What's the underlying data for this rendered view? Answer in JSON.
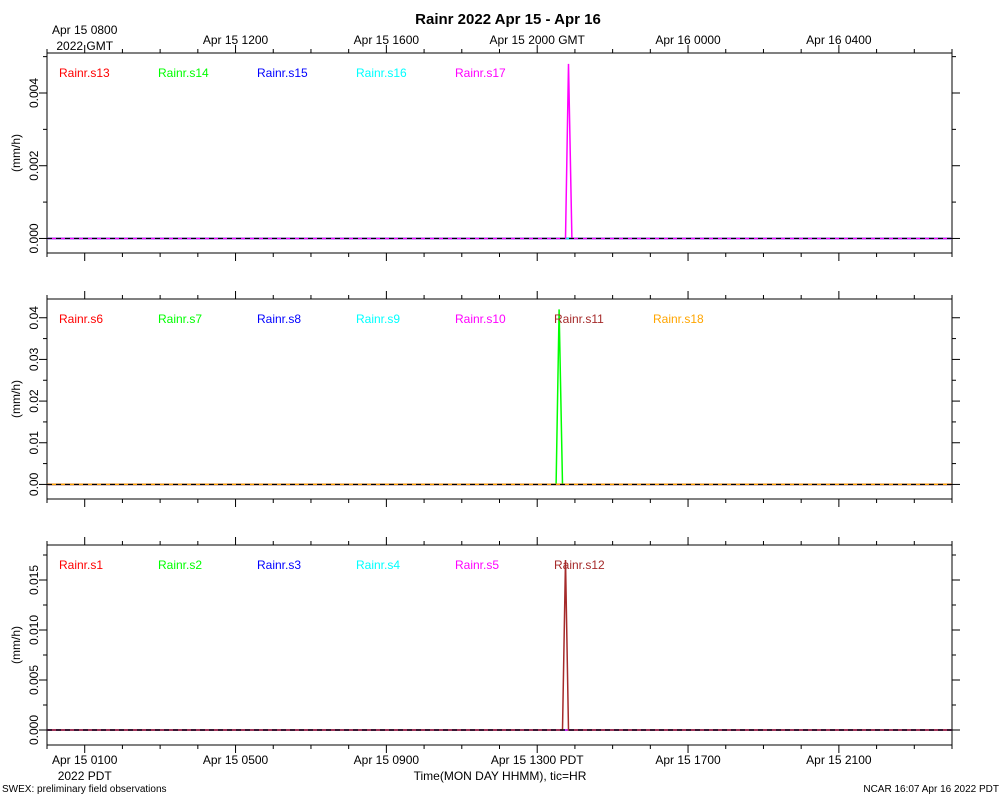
{
  "title": "Rainr 2022 Apr 15 - Apr 16",
  "top_axis": {
    "ticks": [
      {
        "hour": 8,
        "line1": "Apr 15 0800",
        "line2": "2022 GMT"
      },
      {
        "hour": 12,
        "line1": "Apr 15 1200"
      },
      {
        "hour": 16,
        "line1": "Apr 15 1600"
      },
      {
        "hour": 20,
        "line1": "Apr 15 2000 GMT"
      },
      {
        "hour": 24,
        "line1": "Apr 16 0000"
      },
      {
        "hour": 28,
        "line1": "Apr 16 0400"
      }
    ]
  },
  "bottom_axis": {
    "ticks": [
      {
        "hour": 8,
        "line1": "Apr 15 0100",
        "line2": "2022 PDT"
      },
      {
        "hour": 12,
        "line1": "Apr 15 0500"
      },
      {
        "hour": 16,
        "line1": "Apr 15 0900"
      },
      {
        "hour": 20,
        "line1": "Apr 15 1300 PDT"
      },
      {
        "hour": 24,
        "line1": "Apr 15 1700"
      },
      {
        "hour": 28,
        "line1": "Apr 15 2100"
      }
    ],
    "xlabel": "Time(MON DAY HHMM), tic=HR"
  },
  "footer": {
    "left": "SWEX: preliminary field observations",
    "right": "NCAR 16:07 Apr 16 2022 PDT"
  },
  "colors": {
    "red": "#ff0000",
    "green": "#00ff00",
    "blue": "#0000ff",
    "cyan": "#00ffff",
    "magenta": "#ff00ff",
    "brown": "#a52a2a",
    "orange": "#ffa500"
  },
  "chart_data": [
    {
      "type": "line",
      "ylabel": "(mm/h)",
      "xlim_hours_gmt": [
        7,
        31
      ],
      "ylim": [
        -0.0004,
        0.0051
      ],
      "yticks": [
        0.0,
        0.002,
        0.004
      ],
      "ytick_labels": [
        "0.000",
        "0.002",
        "0.004"
      ],
      "series": [
        {
          "name": "Rainr.s13",
          "color": "#ff0000",
          "x": [
            7,
            31
          ],
          "y": [
            0,
            0
          ]
        },
        {
          "name": "Rainr.s14",
          "color": "#00ff00",
          "x": [
            7,
            31
          ],
          "y": [
            0,
            0
          ]
        },
        {
          "name": "Rainr.s15",
          "color": "#0000ff",
          "x": [
            7,
            31
          ],
          "y": [
            0,
            0
          ]
        },
        {
          "name": "Rainr.s16",
          "color": "#00ffff",
          "x": [
            7,
            31
          ],
          "y": [
            0,
            0
          ]
        },
        {
          "name": "Rainr.s17",
          "color": "#ff00ff",
          "x": [
            7,
            20.75,
            20.83,
            20.92,
            31
          ],
          "y": [
            0,
            0,
            0.0048,
            0,
            0
          ]
        }
      ]
    },
    {
      "type": "line",
      "ylabel": "(mm/h)",
      "xlim_hours_gmt": [
        7,
        31
      ],
      "ylim": [
        -0.0035,
        0.0445
      ],
      "yticks": [
        0.0,
        0.01,
        0.02,
        0.03,
        0.04
      ],
      "ytick_labels": [
        "0.00",
        "0.01",
        "0.02",
        "0.03",
        "0.04"
      ],
      "series": [
        {
          "name": "Rainr.s6",
          "color": "#ff0000",
          "x": [
            7,
            31
          ],
          "y": [
            0,
            0
          ]
        },
        {
          "name": "Rainr.s7",
          "color": "#00ff00",
          "x": [
            7,
            20.5,
            20.58,
            20.67,
            31
          ],
          "y": [
            0,
            0,
            0.042,
            0,
            0
          ]
        },
        {
          "name": "Rainr.s8",
          "color": "#0000ff",
          "x": [
            7,
            31
          ],
          "y": [
            0,
            0
          ]
        },
        {
          "name": "Rainr.s9",
          "color": "#00ffff",
          "x": [
            7,
            31
          ],
          "y": [
            0,
            0
          ]
        },
        {
          "name": "Rainr.s10",
          "color": "#ff00ff",
          "x": [
            7,
            31
          ],
          "y": [
            0,
            0
          ]
        },
        {
          "name": "Rainr.s11",
          "color": "#a52a2a",
          "x": [
            7,
            31
          ],
          "y": [
            0,
            0
          ]
        },
        {
          "name": "Rainr.s18",
          "color": "#ffa500",
          "x": [
            7,
            31
          ],
          "y": [
            0,
            0
          ]
        }
      ]
    },
    {
      "type": "line",
      "ylabel": "(mm/h)",
      "xlim_hours_gmt": [
        7,
        31
      ],
      "ylim": [
        -0.0015,
        0.0185
      ],
      "yticks": [
        0.0,
        0.005,
        0.01,
        0.015
      ],
      "ytick_labels": [
        "0.000",
        "0.005",
        "0.010",
        "0.015"
      ],
      "series": [
        {
          "name": "Rainr.s1",
          "color": "#ff0000",
          "x": [
            7,
            31
          ],
          "y": [
            0,
            0
          ]
        },
        {
          "name": "Rainr.s2",
          "color": "#00ff00",
          "x": [
            7,
            31
          ],
          "y": [
            0,
            0
          ]
        },
        {
          "name": "Rainr.s3",
          "color": "#0000ff",
          "x": [
            7,
            31
          ],
          "y": [
            0,
            0
          ]
        },
        {
          "name": "Rainr.s4",
          "color": "#00ffff",
          "x": [
            7,
            31
          ],
          "y": [
            0,
            0
          ]
        },
        {
          "name": "Rainr.s5",
          "color": "#ff00ff",
          "x": [
            7,
            31
          ],
          "y": [
            0,
            0
          ]
        },
        {
          "name": "Rainr.s12",
          "color": "#a52a2a",
          "x": [
            7,
            20.67,
            20.75,
            20.83,
            31
          ],
          "y": [
            0,
            0,
            0.017,
            0,
            0
          ]
        }
      ]
    }
  ]
}
